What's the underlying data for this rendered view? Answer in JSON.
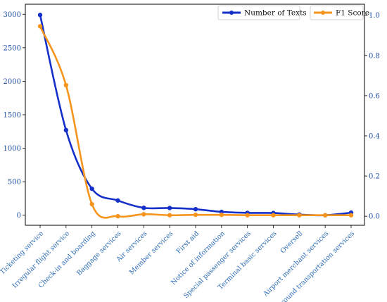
{
  "chart_data": {
    "type": "line",
    "categories": [
      "Ticketing service",
      "Irregular flight service",
      "Check-in and boarding",
      "Baggage services",
      "Air services",
      "Member services",
      "First aid",
      "Notice of information",
      "Special passenger services",
      "Terminal basic services",
      "Oversell",
      "Airport merchant services",
      "Ground transportation services"
    ],
    "series": [
      {
        "name": "Number of Texts",
        "axis": "left",
        "color": "#1530c8",
        "values": [
          2990,
          1270,
          395,
          220,
          110,
          108,
          90,
          50,
          35,
          33,
          10,
          0,
          38
        ]
      },
      {
        "name": "F1 Score",
        "axis": "right",
        "color": "#f5951d",
        "values": [
          0.945,
          0.652,
          0.06,
          0.0,
          0.01,
          0.005,
          0.007,
          0.007,
          0.005,
          0.005,
          0.005,
          0.005,
          0.005
        ]
      }
    ],
    "yleft_ticks": [
      "0",
      "500",
      "1000",
      "1500",
      "2000",
      "2500",
      "3000"
    ],
    "yright_ticks": [
      "0.0",
      "0.2",
      "0.4",
      "0.6",
      "0.8",
      "1.0"
    ],
    "yleft_lim": [
      -150,
      3150
    ],
    "yright_lim": [
      -0.045,
      1.055
    ],
    "legend": [
      "top-center",
      "top-right"
    ],
    "grid": false
  }
}
